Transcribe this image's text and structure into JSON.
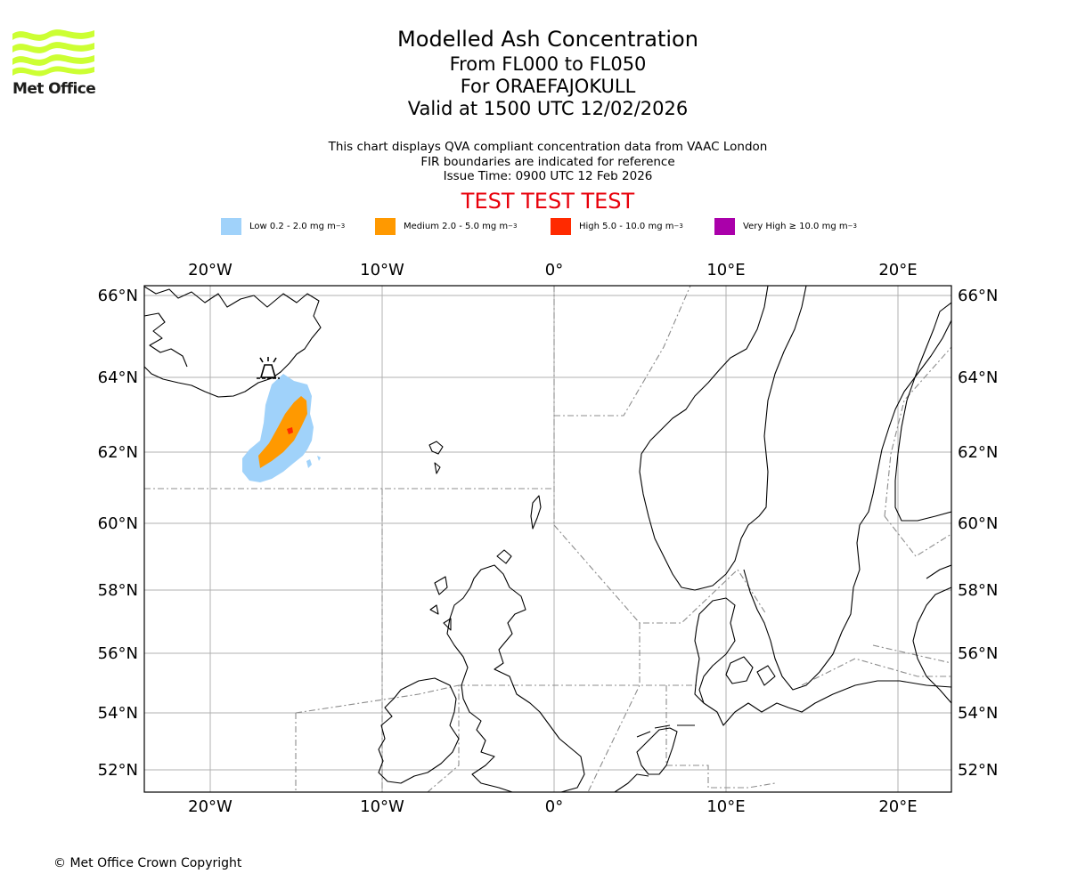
{
  "logo": {
    "text": "Met Office",
    "color": "#ccff33"
  },
  "title": {
    "line1": "Modelled Ash Concentration",
    "line2": "From FL000 to FL050",
    "line3": "For ORAEFAJOKULL",
    "line4": "Valid at 1500 UTC 12/02/2026"
  },
  "description": {
    "line1": "This chart displays QVA compliant concentration data from VAAC London",
    "line2": "FIR boundaries are indicated for reference",
    "line3": "Issue Time: 0900 UTC 12 Feb 2026"
  },
  "test_banner": {
    "text": "TEST TEST TEST",
    "color": "#e8000b"
  },
  "legend": [
    {
      "label": "Low 0.2 - 2.0 mg m",
      "sup": "−3",
      "color": "#a0d2fa"
    },
    {
      "label": "Medium 2.0 - 5.0 mg m",
      "sup": "−3",
      "color": "#ff9900"
    },
    {
      "label": "High 5.0 - 10.0 mg m",
      "sup": "−3",
      "color": "#ff2a00"
    },
    {
      "label": "Very High  ≥  10.0 mg m",
      "sup": "−3",
      "color": "#aa00aa"
    }
  ],
  "map": {
    "lon_range": [
      -24,
      23
    ],
    "lat_range": [
      51.4,
      66.2
    ],
    "projection": "mercator",
    "lon_ticks": [
      "20°W",
      "10°W",
      "0°",
      "10°E",
      "20°E"
    ],
    "lat_ticks": [
      "66°N",
      "64°N",
      "62°N",
      "60°N",
      "58°N",
      "56°N",
      "54°N",
      "52°N"
    ],
    "volcano": {
      "name": "ORAEFAJOKULL",
      "lon": -16.6,
      "lat": 64.0
    },
    "gridline_color": "#b0b0b0",
    "coastline_color": "#000000",
    "fir_boundary_color": "#8c8c8c"
  },
  "copyright": "© Met Office Crown Copyright"
}
